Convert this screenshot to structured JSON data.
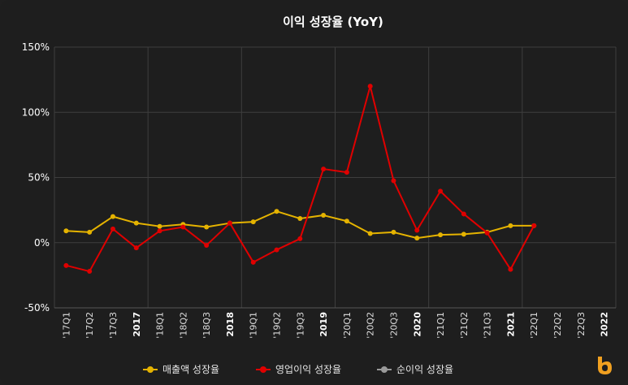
{
  "chart_data": {
    "type": "line",
    "title": "이익 성장율 (YoY)",
    "ylim": [
      -50,
      150
    ],
    "yticks": [
      150,
      100,
      50,
      0,
      -50
    ],
    "ytick_labels": [
      "150%",
      "100%",
      "50%",
      "0%",
      "-50%"
    ],
    "categories": [
      "'17Q1",
      "'17Q2",
      "'17Q3",
      "2017",
      "'18Q1",
      "'18Q2",
      "'18Q3",
      "2018",
      "'19Q1",
      "'19Q2",
      "'19Q3",
      "2019",
      "'20Q1",
      "'20Q2",
      "'20Q3",
      "2020",
      "'21Q1",
      "'21Q2",
      "'21Q3",
      "2021",
      "'22Q1",
      "'22Q2",
      "'22Q3",
      "2022"
    ],
    "bold_categories": [
      "2017",
      "2018",
      "2019",
      "2020",
      "2021",
      "2022"
    ],
    "grid": true,
    "legend_position": "bottom",
    "series": [
      {
        "name": "매출액 성장율",
        "color": "#e5b300",
        "values": [
          9,
          8,
          20,
          15,
          12.5,
          14,
          12,
          15,
          16,
          24,
          18.5,
          21,
          16.5,
          7,
          8,
          3.5,
          6,
          6.5,
          8,
          13,
          13,
          null,
          null,
          null
        ]
      },
      {
        "name": "영업이익 성장율",
        "color": "#e00000",
        "values": [
          -17.5,
          -22,
          10.5,
          -4,
          9,
          12,
          -2,
          15,
          -15,
          -5.5,
          3,
          56.5,
          54,
          120,
          47.5,
          9.5,
          39.5,
          22,
          7.5,
          -20.5,
          13,
          null,
          null,
          null
        ]
      },
      {
        "name": "순이익 성장율",
        "color": "#9a9a9a",
        "values": [
          null,
          null,
          null,
          null,
          null,
          null,
          null,
          null,
          null,
          null,
          null,
          null,
          null,
          null,
          null,
          null,
          null,
          null,
          null,
          null,
          null,
          null,
          null,
          null
        ]
      }
    ]
  },
  "logo": {
    "icon": "b-logo-icon",
    "color": "#f0a020"
  }
}
